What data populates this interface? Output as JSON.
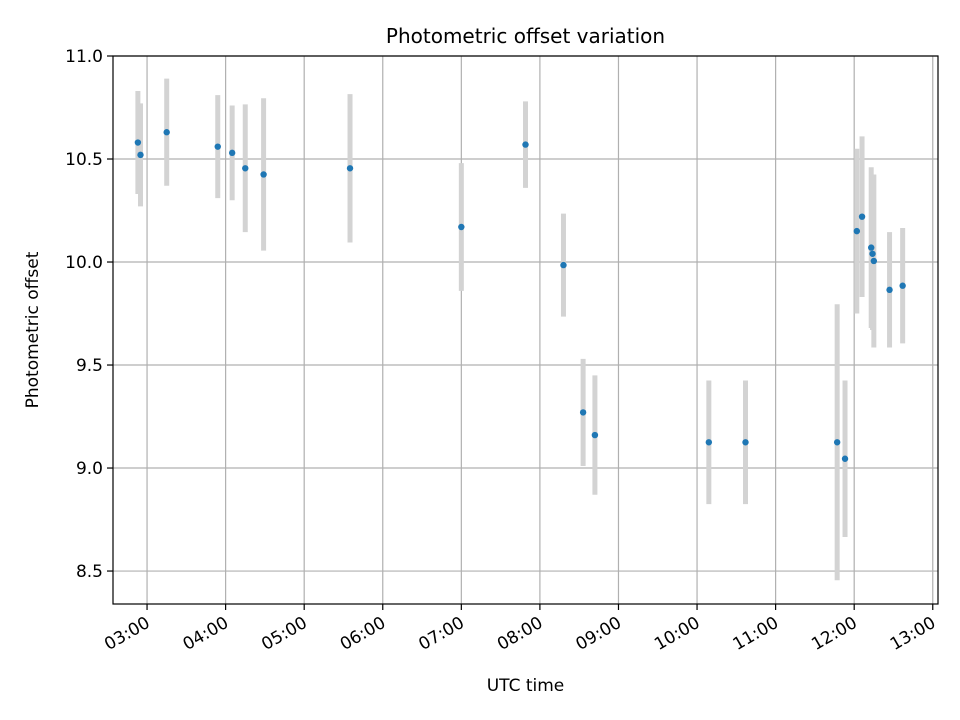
{
  "chart_data": {
    "type": "scatter",
    "title": "Photometric offset variation",
    "xlabel": "UTC time",
    "ylabel": "Photometric offset",
    "ylim": [
      8.34,
      11.0
    ],
    "xlim": [
      "02:34",
      "13:04"
    ],
    "y_ticks": [
      8.5,
      9.0,
      9.5,
      10.0,
      10.5,
      11.0
    ],
    "x_ticks": [
      "03:00",
      "04:00",
      "05:00",
      "06:00",
      "07:00",
      "08:00",
      "09:00",
      "10:00",
      "11:00",
      "12:00",
      "13:00"
    ],
    "grid": true,
    "marker_color": "#1f77b4",
    "errorbar_color": "#d3d3d3",
    "points": [
      {
        "x": "02:53",
        "y": 10.58,
        "err": 0.25
      },
      {
        "x": "02:55",
        "y": 10.52,
        "err": 0.25
      },
      {
        "x": "03:15",
        "y": 10.63,
        "err": 0.26
      },
      {
        "x": "03:54",
        "y": 10.56,
        "err": 0.25
      },
      {
        "x": "04:05",
        "y": 10.53,
        "err": 0.23
      },
      {
        "x": "04:15",
        "y": 10.455,
        "err": 0.31
      },
      {
        "x": "04:29",
        "y": 10.425,
        "err": 0.37
      },
      {
        "x": "05:35",
        "y": 10.455,
        "err": 0.36
      },
      {
        "x": "07:00",
        "y": 10.17,
        "err": 0.31
      },
      {
        "x": "07:49",
        "y": 10.57,
        "err": 0.21
      },
      {
        "x": "08:18",
        "y": 9.985,
        "err": 0.25
      },
      {
        "x": "08:33",
        "y": 9.27,
        "err": 0.26
      },
      {
        "x": "08:42",
        "y": 9.16,
        "err": 0.29
      },
      {
        "x": "10:09",
        "y": 9.125,
        "err": 0.3
      },
      {
        "x": "10:37",
        "y": 9.125,
        "err": 0.3
      },
      {
        "x": "11:47",
        "y": 9.125,
        "err": 0.67
      },
      {
        "x": "11:53",
        "y": 9.045,
        "err": 0.38
      },
      {
        "x": "12:02",
        "y": 10.15,
        "err": 0.4
      },
      {
        "x": "12:06",
        "y": 10.22,
        "err": 0.39
      },
      {
        "x": "12:13",
        "y": 10.07,
        "err": 0.39
      },
      {
        "x": "12:14",
        "y": 10.04,
        "err": 0.37
      },
      {
        "x": "12:15",
        "y": 10.005,
        "err": 0.42
      },
      {
        "x": "12:27",
        "y": 9.865,
        "err": 0.28
      },
      {
        "x": "12:37",
        "y": 9.885,
        "err": 0.28
      }
    ]
  }
}
